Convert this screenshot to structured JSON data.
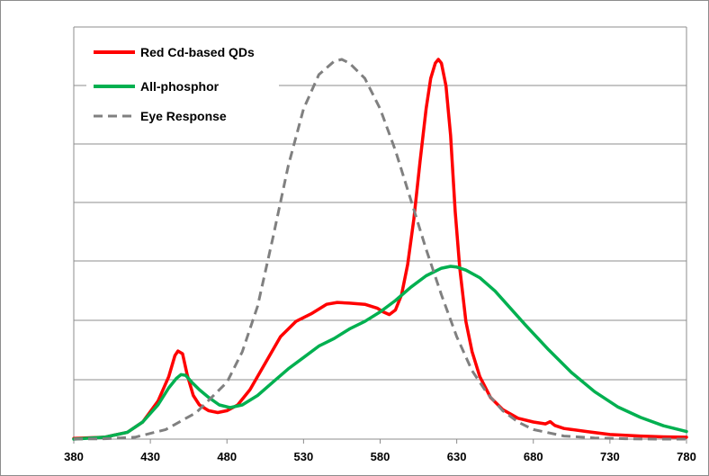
{
  "chart_data": {
    "type": "line",
    "xlim": [
      380,
      780
    ],
    "x_ticks": [
      "380",
      "430",
      "480",
      "530",
      "580",
      "630",
      "680",
      "730",
      "780"
    ],
    "ylim": [
      0,
      1
    ],
    "grid": "horizontal",
    "legend_position": "top-left",
    "series": [
      {
        "name": "Red Cd-based QDs",
        "color": "#ff0000",
        "style": "solid",
        "x": [
          380,
          400,
          415,
          425,
          435,
          442,
          446,
          448,
          451,
          454,
          458,
          462,
          468,
          474,
          480,
          487,
          495,
          505,
          515,
          525,
          535,
          545,
          552,
          560,
          570,
          578,
          582,
          586,
          590,
          594,
          598,
          602,
          606,
          610,
          613,
          616,
          618,
          620,
          623,
          626,
          629,
          632,
          636,
          640,
          645,
          652,
          660,
          670,
          680,
          688,
          691,
          694,
          700,
          715,
          730,
          750,
          765,
          780
        ],
        "y": [
          0.002,
          0.005,
          0.018,
          0.045,
          0.1,
          0.165,
          0.22,
          0.232,
          0.225,
          0.17,
          0.115,
          0.09,
          0.075,
          0.07,
          0.075,
          0.09,
          0.13,
          0.2,
          0.27,
          0.31,
          0.33,
          0.355,
          0.36,
          0.358,
          0.355,
          0.345,
          0.335,
          0.328,
          0.34,
          0.38,
          0.46,
          0.58,
          0.73,
          0.87,
          0.95,
          0.99,
          1.0,
          0.99,
          0.93,
          0.8,
          0.6,
          0.45,
          0.31,
          0.23,
          0.165,
          0.11,
          0.078,
          0.055,
          0.045,
          0.04,
          0.046,
          0.036,
          0.028,
          0.02,
          0.012,
          0.008,
          0.006,
          0.005
        ]
      },
      {
        "name": "All-phosphor",
        "color": "#00b050",
        "style": "solid",
        "x": [
          380,
          400,
          415,
          425,
          435,
          442,
          447,
          450,
          453,
          457,
          462,
          468,
          475,
          482,
          490,
          500,
          510,
          520,
          530,
          540,
          550,
          560,
          570,
          580,
          590,
          600,
          610,
          620,
          626,
          630,
          636,
          645,
          655,
          665,
          675,
          690,
          705,
          720,
          735,
          750,
          765,
          780
        ],
        "y": [
          0.0,
          0.005,
          0.018,
          0.045,
          0.09,
          0.135,
          0.16,
          0.17,
          0.168,
          0.15,
          0.13,
          0.11,
          0.09,
          0.083,
          0.09,
          0.115,
          0.15,
          0.185,
          0.215,
          0.245,
          0.265,
          0.29,
          0.31,
          0.335,
          0.365,
          0.4,
          0.43,
          0.45,
          0.455,
          0.453,
          0.445,
          0.425,
          0.39,
          0.345,
          0.3,
          0.235,
          0.175,
          0.125,
          0.085,
          0.057,
          0.035,
          0.02
        ]
      },
      {
        "name": "Eye Response",
        "color": "#808080",
        "style": "dashed",
        "x": [
          380,
          400,
          420,
          440,
          460,
          480,
          490,
          500,
          510,
          520,
          530,
          540,
          550,
          555,
          560,
          570,
          580,
          590,
          600,
          610,
          620,
          630,
          640,
          650,
          660,
          670,
          680,
          700,
          720,
          740,
          760,
          780
        ],
        "y": [
          0.0,
          0.001,
          0.005,
          0.025,
          0.07,
          0.15,
          0.23,
          0.35,
          0.53,
          0.72,
          0.87,
          0.96,
          0.995,
          1.0,
          0.99,
          0.95,
          0.87,
          0.76,
          0.63,
          0.5,
          0.38,
          0.27,
          0.18,
          0.12,
          0.075,
          0.045,
          0.025,
          0.008,
          0.003,
          0.001,
          0.0,
          0.0
        ]
      }
    ]
  }
}
